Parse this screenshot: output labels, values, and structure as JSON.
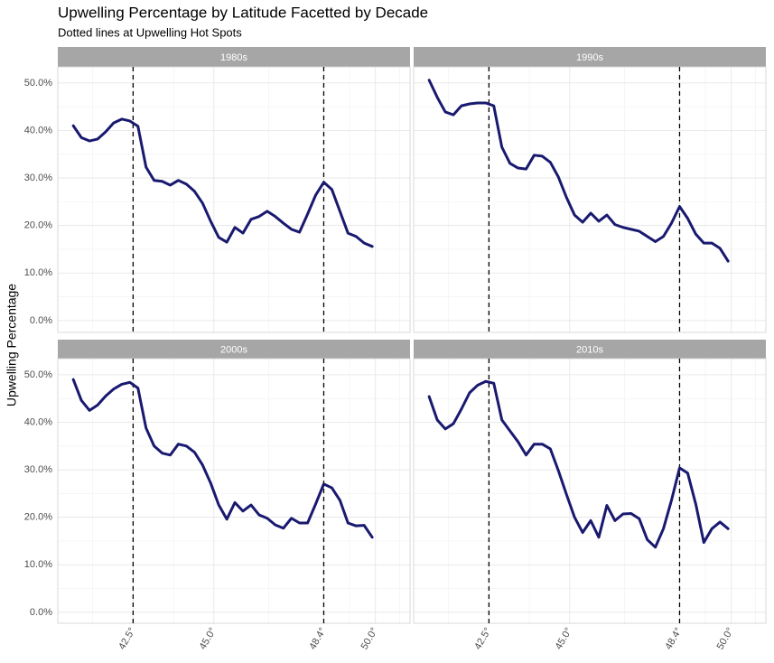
{
  "title": "Upwelling Percentage by Latitude Facetted by Decade",
  "subtitle": "Dotted lines at Upwelling Hot Spots",
  "y_label": "Upwelling Percentage",
  "chart_data": [
    {
      "type": "line",
      "title": "1980s",
      "color": "#191970",
      "x": [
        40.65,
        40.9,
        41.15,
        41.4,
        41.65,
        41.9,
        42.15,
        42.4,
        42.65,
        42.9,
        43.15,
        43.4,
        43.65,
        43.9,
        44.15,
        44.4,
        44.65,
        44.9,
        45.15,
        45.4,
        45.65,
        45.9,
        46.15,
        46.4,
        46.65,
        46.9,
        47.15,
        47.4,
        47.65,
        47.9,
        48.15,
        48.4,
        48.65,
        48.9,
        49.15,
        49.4,
        49.65,
        49.9
      ],
      "values": [
        41,
        38.5,
        37.8,
        38.2,
        39.7,
        41.6,
        42.4,
        42,
        40.9,
        32.3,
        29.5,
        29.3,
        28.5,
        29.5,
        28.7,
        27.2,
        24.7,
        20.9,
        17.5,
        16.5,
        19.6,
        18.4,
        21.3,
        21.9,
        23,
        21.9,
        20.5,
        19.2,
        18.6,
        22.4,
        26.4,
        29.1,
        27.6,
        23,
        18.4,
        17.7,
        16.3,
        15.6
      ],
      "xlim": [
        40.17,
        51.07
      ],
      "ylim": [
        -2.5,
        53.4
      ],
      "xticks": [
        {
          "value": 42.5,
          "label": "42.5°"
        },
        {
          "value": 45.0,
          "label": "45.0°"
        },
        {
          "value": 48.4,
          "label": "48.4°"
        },
        {
          "value": 50.0,
          "label": "50.0°"
        }
      ],
      "yticks": [
        {
          "value": 0,
          "label": "0.0%"
        },
        {
          "value": 10,
          "label": "10.0%"
        },
        {
          "value": 20,
          "label": "20.0%"
        },
        {
          "value": 30,
          "label": "30.0%"
        },
        {
          "value": 40,
          "label": "40.0%"
        },
        {
          "value": 50,
          "label": "50.0%"
        }
      ],
      "x_minor_ticks": [
        41.25,
        43.75,
        46.7,
        49.2,
        50.75
      ],
      "y_minor_ticks": [
        5,
        15,
        25,
        35,
        45
      ],
      "vlines": [
        42.5,
        48.4
      ]
    },
    {
      "type": "line",
      "title": "1990s",
      "color": "#191970",
      "x": [
        40.65,
        40.9,
        41.15,
        41.4,
        41.65,
        41.9,
        42.15,
        42.4,
        42.65,
        42.9,
        43.15,
        43.4,
        43.65,
        43.9,
        44.15,
        44.4,
        44.65,
        44.9,
        45.15,
        45.4,
        45.65,
        45.9,
        46.15,
        46.4,
        46.65,
        46.9,
        47.15,
        47.4,
        47.65,
        47.9,
        48.15,
        48.4,
        48.65,
        48.9,
        49.15,
        49.4,
        49.65,
        49.9
      ],
      "values": [
        50.6,
        47,
        43.9,
        43.3,
        45.2,
        45.6,
        45.8,
        45.8,
        45.2,
        36.5,
        33.1,
        32.1,
        31.9,
        34.8,
        34.6,
        33.3,
        30.2,
        25.9,
        22.2,
        20.7,
        22.6,
        20.9,
        22.2,
        20.2,
        19.6,
        19.2,
        18.8,
        17.7,
        16.6,
        17.7,
        20.5,
        24.0,
        21.5,
        18.2,
        16.3,
        16.3,
        15.2,
        12.5
      ],
      "xlim": [
        40.17,
        51.07
      ],
      "ylim": [
        -2.5,
        53.4
      ],
      "xticks": [
        {
          "value": 42.5,
          "label": "42.5°"
        },
        {
          "value": 45.0,
          "label": "45.0°"
        },
        {
          "value": 48.4,
          "label": "48.4°"
        },
        {
          "value": 50.0,
          "label": "50.0°"
        }
      ],
      "yticks": [
        {
          "value": 0,
          "label": "0.0%"
        },
        {
          "value": 10,
          "label": "10.0%"
        },
        {
          "value": 20,
          "label": "20.0%"
        },
        {
          "value": 30,
          "label": "30.0%"
        },
        {
          "value": 40,
          "label": "40.0%"
        },
        {
          "value": 50,
          "label": "50.0%"
        }
      ],
      "x_minor_ticks": [
        41.25,
        43.75,
        46.7,
        49.2,
        50.75
      ],
      "y_minor_ticks": [
        5,
        15,
        25,
        35,
        45
      ],
      "vlines": [
        42.5,
        48.4
      ]
    },
    {
      "type": "line",
      "title": "2000s",
      "color": "#191970",
      "x": [
        40.65,
        40.9,
        41.15,
        41.4,
        41.65,
        41.9,
        42.15,
        42.4,
        42.65,
        42.9,
        43.15,
        43.4,
        43.65,
        43.9,
        44.15,
        44.4,
        44.65,
        44.9,
        45.15,
        45.4,
        45.65,
        45.9,
        46.15,
        46.4,
        46.65,
        46.9,
        47.15,
        47.4,
        47.65,
        47.9,
        48.15,
        48.4,
        48.65,
        48.9,
        49.15,
        49.4,
        49.65,
        49.9
      ],
      "values": [
        49,
        44.6,
        42.5,
        43.6,
        45.5,
        47,
        48,
        48.4,
        47.2,
        38.8,
        35,
        33.5,
        33.1,
        35.4,
        35,
        33.7,
        31,
        27.2,
        22.6,
        19.6,
        23.1,
        21.3,
        22.6,
        20.5,
        19.8,
        18.4,
        17.7,
        19.8,
        18.8,
        18.8,
        22.8,
        27,
        26.2,
        23.6,
        18.8,
        18.2,
        18.3,
        15.8
      ],
      "xlim": [
        40.17,
        51.07
      ],
      "ylim": [
        -2.3,
        53.4
      ],
      "xticks": [
        {
          "value": 42.5,
          "label": "42.5°"
        },
        {
          "value": 45.0,
          "label": "45.0°"
        },
        {
          "value": 48.4,
          "label": "48.4°"
        },
        {
          "value": 50.0,
          "label": "50.0°"
        }
      ],
      "yticks": [
        {
          "value": 0,
          "label": "0.0%"
        },
        {
          "value": 10,
          "label": "10.0%"
        },
        {
          "value": 20,
          "label": "20.0%"
        },
        {
          "value": 30,
          "label": "30.0%"
        },
        {
          "value": 40,
          "label": "40.0%"
        },
        {
          "value": 50,
          "label": "50.0%"
        }
      ],
      "x_minor_ticks": [
        41.25,
        43.75,
        46.7,
        49.2,
        50.75
      ],
      "y_minor_ticks": [
        5,
        15,
        25,
        35,
        45
      ],
      "vlines": [
        42.5,
        48.4
      ]
    },
    {
      "type": "line",
      "title": "2010s",
      "color": "#191970",
      "x": [
        40.65,
        40.9,
        41.15,
        41.4,
        41.65,
        41.9,
        42.15,
        42.4,
        42.65,
        42.9,
        43.15,
        43.4,
        43.65,
        43.9,
        44.15,
        44.4,
        44.65,
        44.9,
        45.15,
        45.4,
        45.65,
        45.9,
        46.15,
        46.4,
        46.65,
        46.9,
        47.15,
        47.4,
        47.65,
        47.9,
        48.15,
        48.4,
        48.65,
        48.9,
        49.15,
        49.4,
        49.65,
        49.9
      ],
      "values": [
        45.4,
        40.5,
        38.6,
        39.7,
        42.8,
        46.2,
        47.8,
        48.6,
        48.2,
        40.5,
        38.2,
        35.9,
        33.1,
        35.4,
        35.4,
        34.4,
        29.8,
        24.8,
        20.0,
        16.8,
        19.3,
        15.8,
        22.5,
        19.3,
        20.7,
        20.8,
        19.7,
        15.3,
        13.7,
        17.6,
        23.6,
        30.4,
        29.3,
        22.8,
        14.7,
        17.6,
        19.0,
        17.6
      ],
      "xlim": [
        40.17,
        51.07
      ],
      "ylim": [
        -2.3,
        53.4
      ],
      "xticks": [
        {
          "value": 42.5,
          "label": "42.5°"
        },
        {
          "value": 45.0,
          "label": "45.0°"
        },
        {
          "value": 48.4,
          "label": "48.4°"
        },
        {
          "value": 50.0,
          "label": "50.0°"
        }
      ],
      "yticks": [
        {
          "value": 0,
          "label": "0.0%"
        },
        {
          "value": 10,
          "label": "10.0%"
        },
        {
          "value": 20,
          "label": "20.0%"
        },
        {
          "value": 30,
          "label": "30.0%"
        },
        {
          "value": 40,
          "label": "40.0%"
        },
        {
          "value": 50,
          "label": "50.0%"
        }
      ],
      "x_minor_ticks": [
        41.25,
        43.75,
        46.7,
        49.2,
        50.75
      ],
      "y_minor_ticks": [
        5,
        15,
        25,
        35,
        45
      ],
      "vlines": [
        42.5,
        48.4
      ]
    }
  ]
}
